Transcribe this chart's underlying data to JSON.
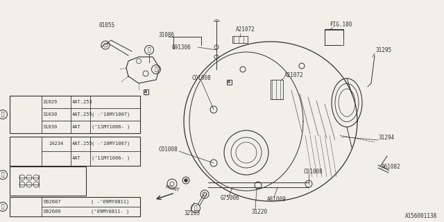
{
  "bg_color": "#f0f0e8",
  "line_color": "#303030",
  "diagram_id": "A156001138",
  "fig_ref": "FIG.180",
  "font_size_label": 5.5,
  "font_size_table": 5.0,
  "font_size_id": 5.5,
  "table1": {
    "rows": [
      [
        "31029",
        "4AT.253",
        ""
      ],
      [
        "31030",
        "4AT.255",
        "( -'10MY1007)"
      ],
      [
        "31030",
        "4AT",
        "('11MY1006- )"
      ]
    ]
  },
  "table2": {
    "part": "24234",
    "rows": [
      [
        "4AT.255",
        "( -'10MY1007)"
      ],
      [
        "4AT",
        "('11MY1006- )"
      ]
    ]
  },
  "table3": {
    "rows": [
      [
        "D92607",
        "( -'09MY0811)"
      ],
      [
        "D92609",
        "('09MY0811- )"
      ]
    ]
  }
}
